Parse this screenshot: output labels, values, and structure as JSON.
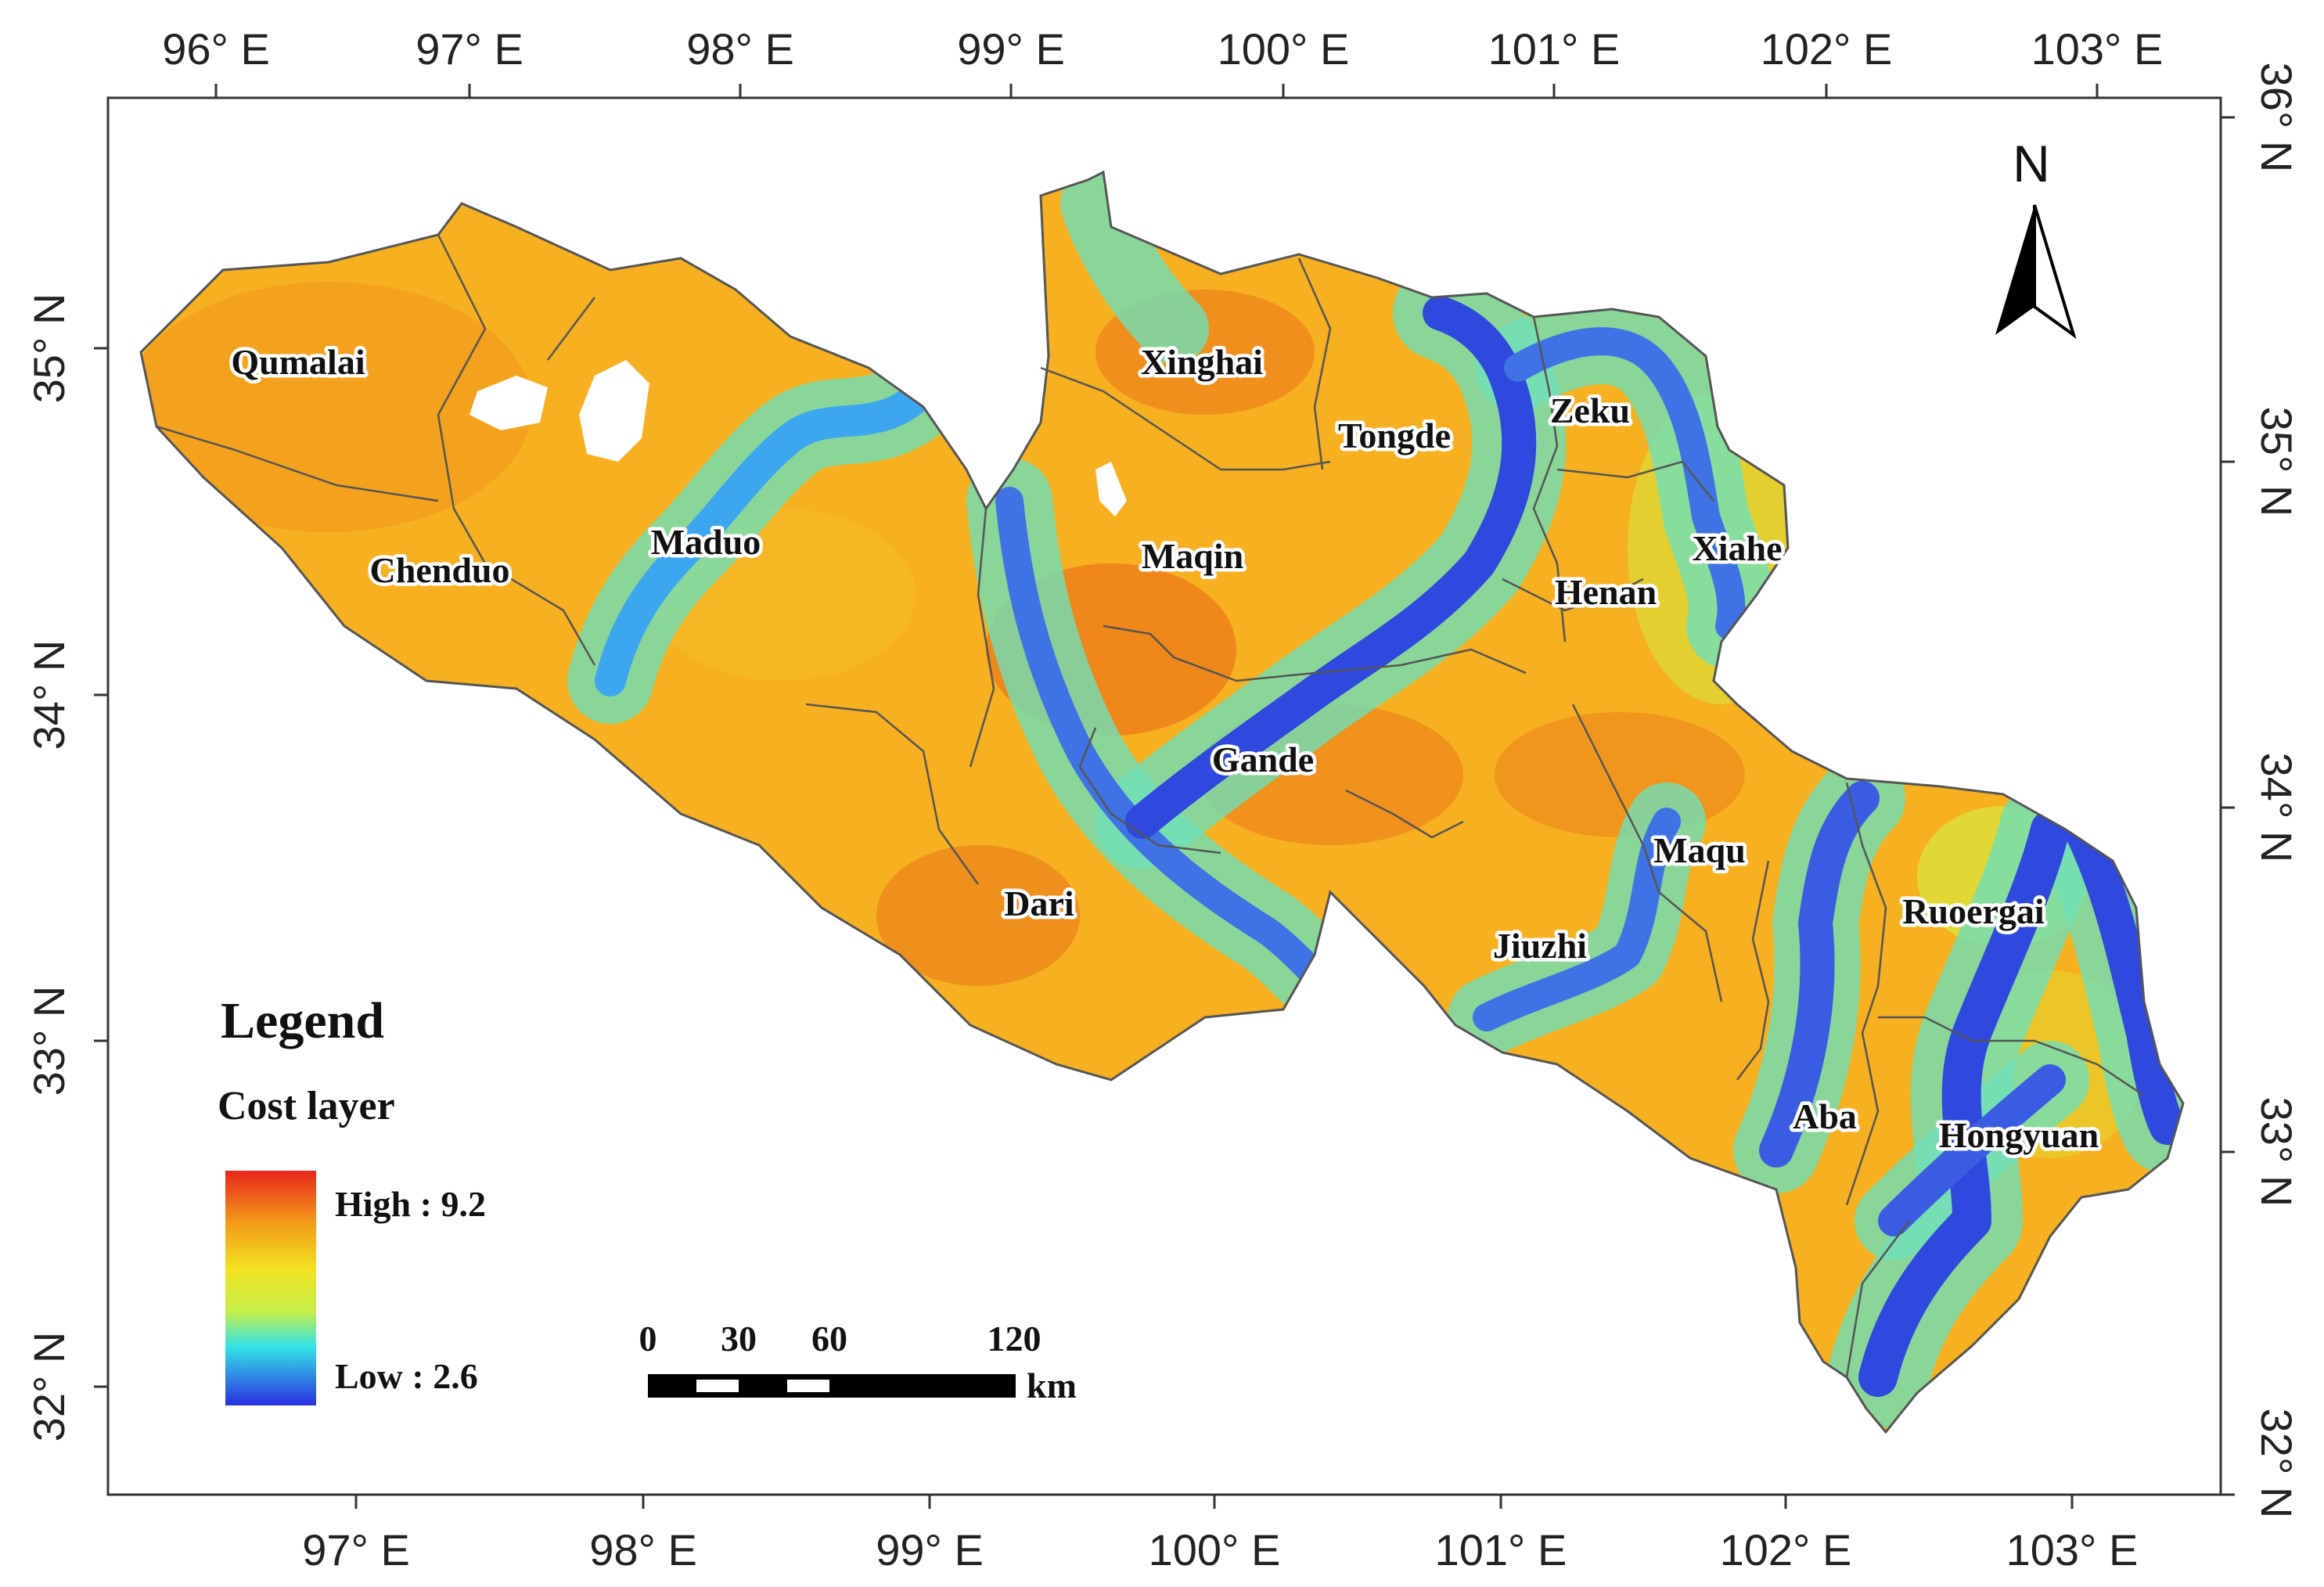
{
  "top_axis": [
    "96° E",
    "97° E",
    "98° E",
    "99° E",
    "100° E",
    "101° E",
    "102° E",
    "103° E"
  ],
  "bottom_axis": [
    "97° E",
    "98° E",
    "99° E",
    "100° E",
    "101° E",
    "102° E",
    "103° E"
  ],
  "left_axis": [
    "35° N",
    "34° N",
    "33° N",
    "32° N"
  ],
  "right_axis": [
    "36° N",
    "35° N",
    "34° N",
    "33° N",
    "32° N"
  ],
  "counties": [
    "Qumalai",
    "Chenduo",
    "Maduo",
    "Xinghai",
    "Tongde",
    "Zeku",
    "Xiahe",
    "Maqin",
    "Henan",
    "Gande",
    "Dari",
    "Maqu",
    "Ruoergai",
    "Jiuzhi",
    "Aba",
    "Hongyuan"
  ],
  "legend": {
    "title": "Legend",
    "subtitle": "Cost layer",
    "high_label": "High : 9.2",
    "low_label": "Low : 2.6",
    "high_color": "#e8251c",
    "low_color": "#2b2fe0"
  },
  "scale_bar": {
    "ticks": [
      "0",
      "30",
      "60",
      "120"
    ],
    "unit": "km"
  },
  "north_arrow": "N"
}
